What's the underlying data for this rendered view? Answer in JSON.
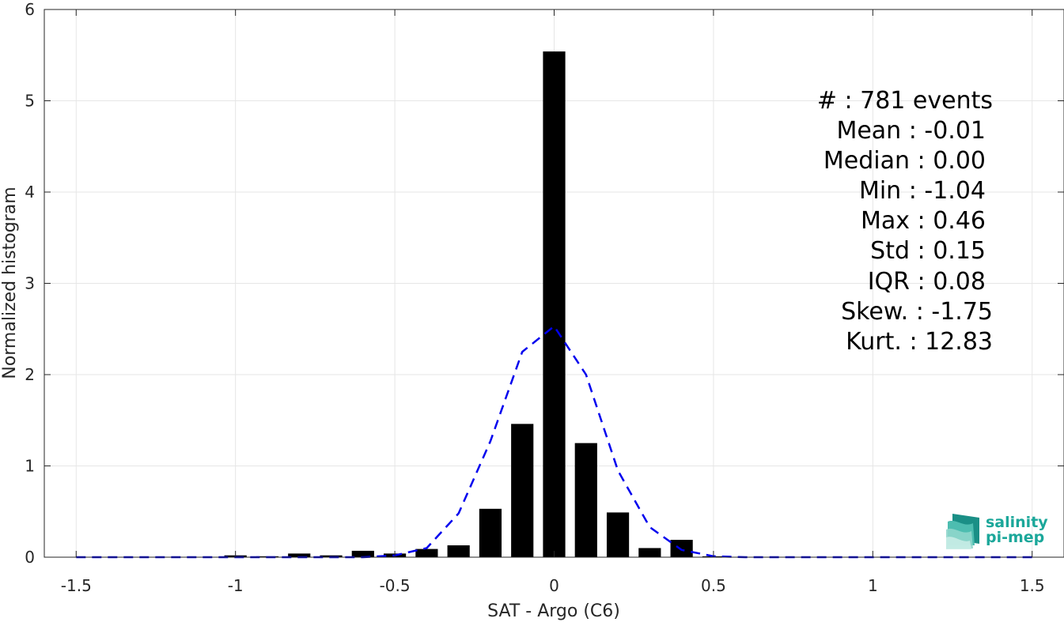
{
  "chart_data": {
    "type": "bar",
    "xlabel": "SAT - Argo (C6)",
    "ylabel": "Normalized histogram",
    "xlim": [
      -1.6,
      1.6
    ],
    "ylim": [
      0,
      6
    ],
    "xticks": [
      -1.5,
      -1,
      -0.5,
      0,
      0.5,
      1,
      1.5
    ],
    "xtick_labels": [
      "-1.5",
      "-1",
      "-0.5",
      "0",
      "0.5",
      "1",
      "1.5"
    ],
    "yticks": [
      0,
      1,
      2,
      3,
      4,
      5,
      6
    ],
    "ytick_labels": [
      "0",
      "1",
      "2",
      "3",
      "4",
      "5",
      "6"
    ],
    "grid": true,
    "bar_width": 0.07,
    "bars": {
      "x": [
        -1.0,
        -0.9,
        -0.8,
        -0.7,
        -0.6,
        -0.5,
        -0.4,
        -0.3,
        -0.2,
        -0.1,
        0.0,
        0.1,
        0.2,
        0.3,
        0.4,
        0.5
      ],
      "values": [
        0.02,
        0.01,
        0.04,
        0.02,
        0.07,
        0.04,
        0.09,
        0.13,
        0.53,
        1.46,
        5.54,
        1.25,
        0.49,
        0.1,
        0.19,
        0.01
      ]
    },
    "fit_curve": {
      "style": "dashed",
      "color": "#0000ee",
      "x": [
        -1.5,
        -1.4,
        -1.3,
        -1.2,
        -1.1,
        -1.0,
        -0.9,
        -0.8,
        -0.7,
        -0.6,
        -0.5,
        -0.4,
        -0.3,
        -0.2,
        -0.1,
        0.0,
        0.1,
        0.2,
        0.3,
        0.4,
        0.5,
        0.6,
        0.7,
        0.8,
        0.9,
        1.0,
        1.1,
        1.2,
        1.3,
        1.4,
        1.5
      ],
      "y": [
        0,
        0,
        0,
        0,
        0,
        0,
        0,
        0,
        0,
        0,
        0.02,
        0.1,
        0.48,
        1.27,
        2.25,
        2.53,
        2.0,
        0.95,
        0.33,
        0.08,
        0.01,
        0,
        0,
        0,
        0,
        0,
        0,
        0,
        0,
        0,
        0
      ]
    },
    "annotations": [
      "#  : 781 events",
      "Mean : -0.01",
      "Median : 0.00",
      "Min : -1.04",
      "Max : 0.46",
      "Std : 0.15",
      "IQR : 0.08",
      "Skew. : -1.75",
      "Kurt. : 12.83"
    ]
  },
  "logo": {
    "line1": "salinity",
    "line2": "pi-mep",
    "color": "#1ba79a"
  }
}
